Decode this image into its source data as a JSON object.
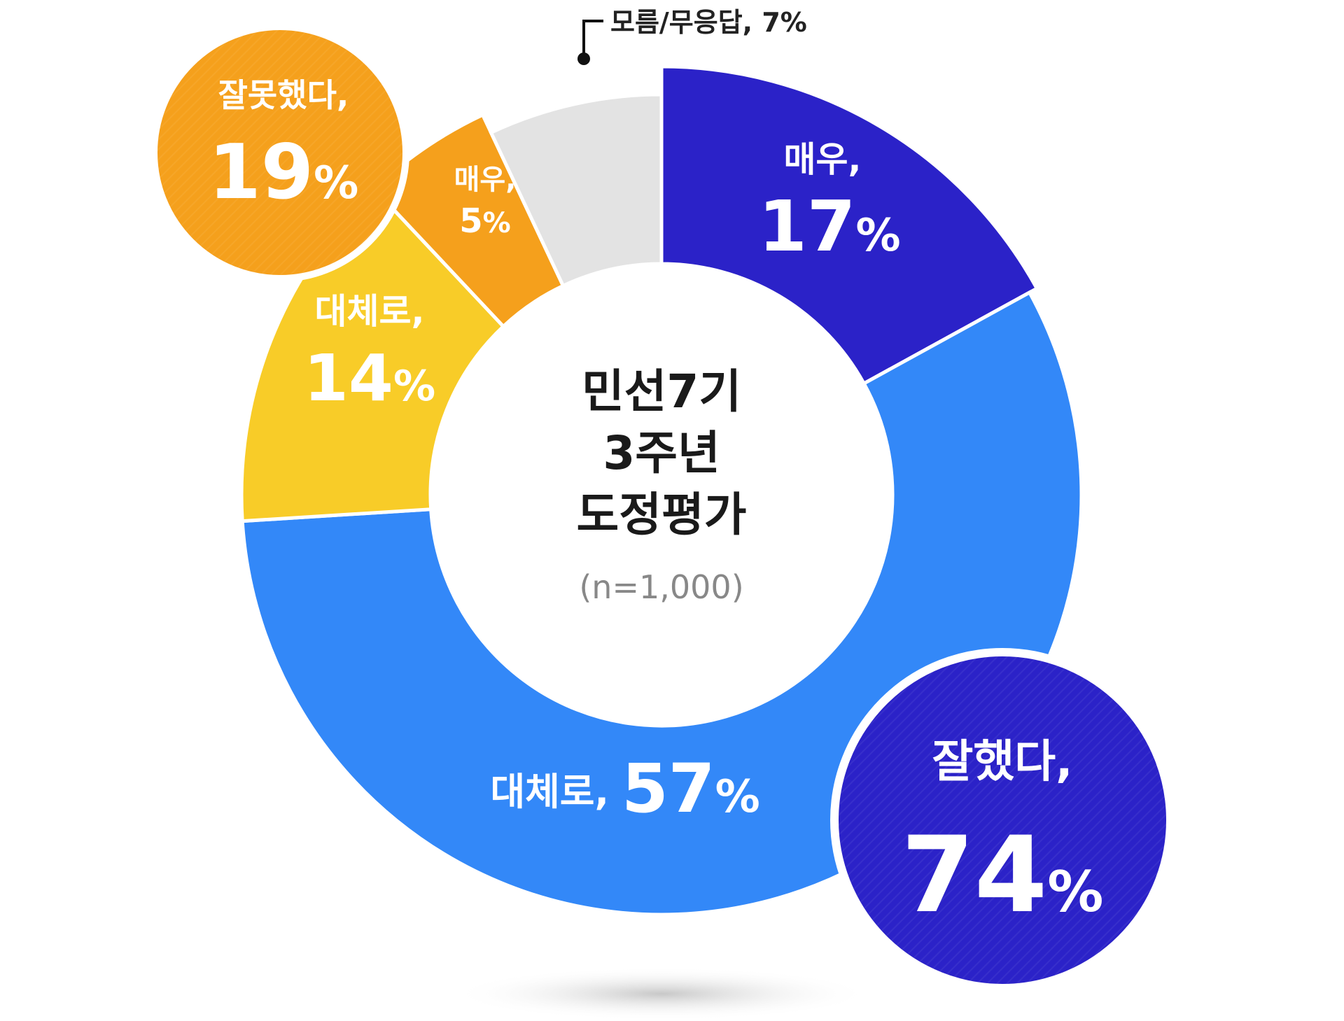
{
  "chart_data": {
    "type": "pie",
    "center_title_lines": [
      "민선7기",
      "3주년",
      "도정평가"
    ],
    "center_subtitle": "(n=1,000)",
    "slices": [
      {
        "name": "매우,",
        "value": 17,
        "value_text": "17",
        "color": "#2b22c8"
      },
      {
        "name": "대체로,",
        "value": 57,
        "value_text": "57",
        "color": "#3388f8"
      },
      {
        "name": "대체로,",
        "value": 14,
        "value_text": "14",
        "color": "#f8cc28"
      },
      {
        "name": "매우,",
        "value": 5,
        "value_text": "5",
        "color": "#f5a01c"
      },
      {
        "name": "모름/무응답, 7%",
        "value": 7,
        "value_text": "7",
        "color": "#e3e3e3"
      }
    ],
    "groups": [
      {
        "name": "잘했다,",
        "value": 74,
        "value_text": "74",
        "color": "#2b22c8"
      },
      {
        "name": "잘못했다,",
        "value": 19,
        "value_text": "19",
        "color": "#f5a01c"
      }
    ],
    "percent_sign": "%"
  }
}
